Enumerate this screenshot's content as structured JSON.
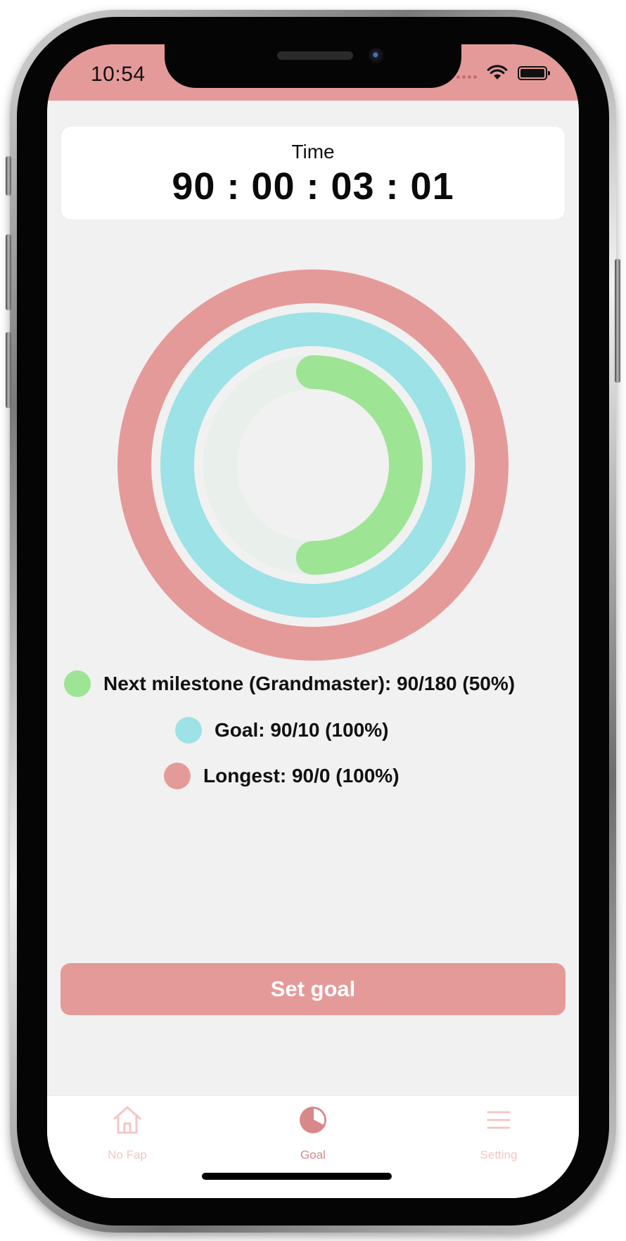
{
  "status_bar": {
    "time": "10:54",
    "wifi_icon": "wifi-icon",
    "battery_icon": "battery-icon"
  },
  "timer": {
    "label": "Time",
    "value": "90 : 00 : 03 : 01"
  },
  "progress_rings": {
    "longest": {
      "fraction": 1.0,
      "color": "#e59a9a"
    },
    "goal": {
      "fraction": 1.0,
      "color": "#9ce2e6"
    },
    "milestone": {
      "fraction": 0.5,
      "color": "#9de494",
      "track_color": "#e9efea"
    }
  },
  "legend": [
    {
      "text": "Next milestone (Grandmaster): 90/180 (50%)",
      "color": "#9de494"
    },
    {
      "text": "Goal: 90/10 (100%)",
      "color": "#9ce2e6"
    },
    {
      "text": "Longest: 90/0 (100%)",
      "color": "#e59a9a"
    }
  ],
  "actions": {
    "set_goal_label": "Set goal"
  },
  "tabs": [
    {
      "label": "No Fap",
      "icon": "home-icon",
      "active": false
    },
    {
      "label": "Goal",
      "icon": "pie-chart-icon",
      "active": true
    },
    {
      "label": "Setting",
      "icon": "menu-icon",
      "active": false
    }
  ],
  "colors": {
    "accent": "#e59a9a",
    "tab_active": "#d9888a",
    "tab_inactive": "#f3c6c6",
    "background": "#f1f1f1"
  }
}
